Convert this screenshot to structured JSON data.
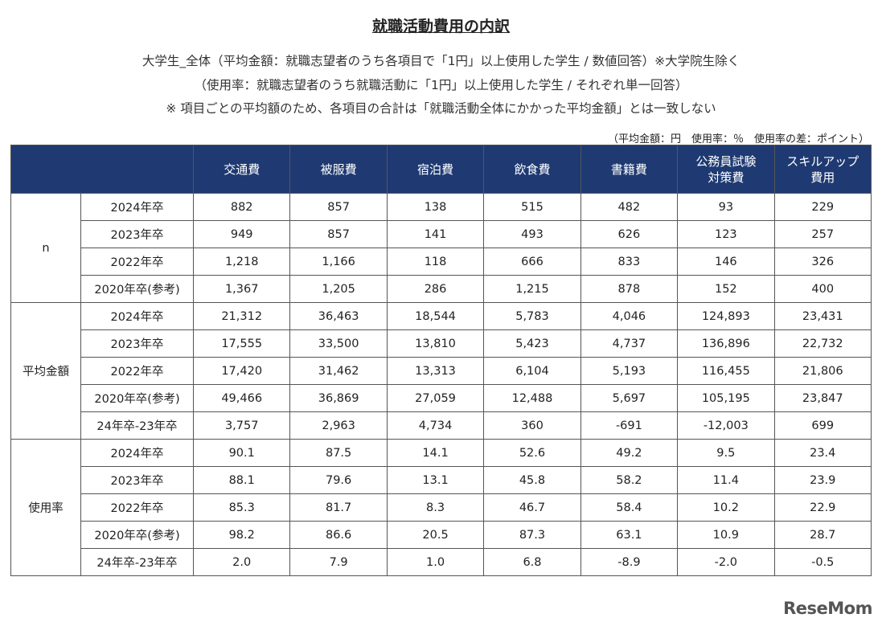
{
  "header": {
    "title": "就職活動費用の内訳",
    "subtitle_lines": [
      "大学生_全体（平均金額：就職志望者のうち各項目で「1円」以上使用した学生 / 数値回答）※大学院生除く",
      "（使用率：就職志望者のうち就職活動に「1円」以上使用した学生 / それぞれ単一回答）",
      "※ 項目ごとの平均額のため、各項目の合計は「就職活動全体にかかった平均金額」とは一致しない"
    ],
    "unit_note": "（平均金額：円　使用率：％　使用率の差：ポイント）"
  },
  "table": {
    "columns": [
      "交通費",
      "被服費",
      "宿泊費",
      "飲食費",
      "書籍費",
      "公務員試験\n対策費",
      "スキルアップ\n費用"
    ],
    "groups": [
      {
        "label": "n",
        "rows": [
          {
            "label": "2024年卒",
            "values": [
              "882",
              "857",
              "138",
              "515",
              "482",
              "93",
              "229"
            ]
          },
          {
            "label": "2023年卒",
            "values": [
              "949",
              "857",
              "141",
              "493",
              "626",
              "123",
              "257"
            ]
          },
          {
            "label": "2022年卒",
            "values": [
              "1,218",
              "1,166",
              "118",
              "666",
              "833",
              "146",
              "326"
            ]
          },
          {
            "label": "2020年卒(参考)",
            "values": [
              "1,367",
              "1,205",
              "286",
              "1,215",
              "878",
              "152",
              "400"
            ]
          }
        ]
      },
      {
        "label": "平均金額",
        "rows": [
          {
            "label": "2024年卒",
            "values": [
              "21,312",
              "36,463",
              "18,544",
              "5,783",
              "4,046",
              "124,893",
              "23,431"
            ]
          },
          {
            "label": "2023年卒",
            "values": [
              "17,555",
              "33,500",
              "13,810",
              "5,423",
              "4,737",
              "136,896",
              "22,732"
            ]
          },
          {
            "label": "2022年卒",
            "values": [
              "17,420",
              "31,462",
              "13,313",
              "6,104",
              "5,193",
              "116,455",
              "21,806"
            ]
          },
          {
            "label": "2020年卒(参考)",
            "values": [
              "49,466",
              "36,869",
              "27,059",
              "12,488",
              "5,697",
              "105,195",
              "23,847"
            ]
          },
          {
            "label": "24年卒-23年卒",
            "values": [
              "3,757",
              "2,963",
              "4,734",
              "360",
              "-691",
              "-12,003",
              "699"
            ]
          }
        ]
      },
      {
        "label": "使用率",
        "rows": [
          {
            "label": "2024年卒",
            "values": [
              "90.1",
              "87.5",
              "14.1",
              "52.6",
              "49.2",
              "9.5",
              "23.4"
            ]
          },
          {
            "label": "2023年卒",
            "values": [
              "88.1",
              "79.6",
              "13.1",
              "45.8",
              "58.2",
              "11.4",
              "23.9"
            ]
          },
          {
            "label": "2022年卒",
            "values": [
              "85.3",
              "81.7",
              "8.3",
              "46.7",
              "58.4",
              "10.2",
              "22.9"
            ]
          },
          {
            "label": "2020年卒(参考)",
            "values": [
              "98.2",
              "86.6",
              "20.5",
              "87.3",
              "63.1",
              "10.9",
              "28.7"
            ]
          },
          {
            "label": "24年卒-23年卒",
            "values": [
              "2.0",
              "7.9",
              "1.0",
              "6.8",
              "-8.9",
              "-2.0",
              "-0.5"
            ]
          }
        ]
      }
    ]
  },
  "watermark": "ReseMom"
}
